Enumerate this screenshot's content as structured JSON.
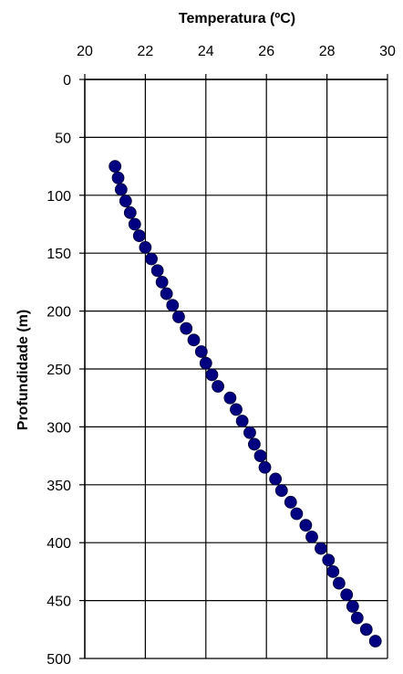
{
  "chart_data": {
    "type": "scatter",
    "title": "",
    "xlabel": "Temperatura (ºC)",
    "ylabel": "Profundidade (m)",
    "x_axis_position": "top",
    "y_axis_inverted": true,
    "xlim": [
      20,
      30
    ],
    "ylim": [
      0,
      500
    ],
    "xticks": [
      20,
      22,
      24,
      26,
      28,
      30
    ],
    "yticks": [
      0,
      50,
      100,
      150,
      200,
      250,
      300,
      350,
      400,
      450,
      500
    ],
    "grid": true,
    "legend": "none",
    "marker_color": "#000080",
    "series": [
      {
        "points": [
          {
            "x": 21.0,
            "y": 75
          },
          {
            "x": 21.1,
            "y": 85
          },
          {
            "x": 21.2,
            "y": 95
          },
          {
            "x": 21.35,
            "y": 105
          },
          {
            "x": 21.5,
            "y": 115
          },
          {
            "x": 21.65,
            "y": 125
          },
          {
            "x": 21.8,
            "y": 135
          },
          {
            "x": 22.0,
            "y": 145
          },
          {
            "x": 22.2,
            "y": 155
          },
          {
            "x": 22.4,
            "y": 165
          },
          {
            "x": 22.55,
            "y": 175
          },
          {
            "x": 22.7,
            "y": 185
          },
          {
            "x": 22.9,
            "y": 195
          },
          {
            "x": 23.1,
            "y": 205
          },
          {
            "x": 23.35,
            "y": 215
          },
          {
            "x": 23.6,
            "y": 225
          },
          {
            "x": 23.85,
            "y": 235
          },
          {
            "x": 24.0,
            "y": 245
          },
          {
            "x": 24.2,
            "y": 255
          },
          {
            "x": 24.4,
            "y": 265
          },
          {
            "x": 24.8,
            "y": 275
          },
          {
            "x": 25.0,
            "y": 285
          },
          {
            "x": 25.2,
            "y": 295
          },
          {
            "x": 25.45,
            "y": 305
          },
          {
            "x": 25.6,
            "y": 315
          },
          {
            "x": 25.8,
            "y": 325
          },
          {
            "x": 25.95,
            "y": 335
          },
          {
            "x": 26.3,
            "y": 345
          },
          {
            "x": 26.5,
            "y": 355
          },
          {
            "x": 26.8,
            "y": 365
          },
          {
            "x": 27.0,
            "y": 375
          },
          {
            "x": 27.3,
            "y": 385
          },
          {
            "x": 27.5,
            "y": 395
          },
          {
            "x": 27.8,
            "y": 405
          },
          {
            "x": 28.05,
            "y": 415
          },
          {
            "x": 28.2,
            "y": 425
          },
          {
            "x": 28.4,
            "y": 435
          },
          {
            "x": 28.65,
            "y": 445
          },
          {
            "x": 28.85,
            "y": 455
          },
          {
            "x": 29.0,
            "y": 465
          },
          {
            "x": 29.3,
            "y": 475
          },
          {
            "x": 29.6,
            "y": 485
          }
        ]
      }
    ]
  }
}
